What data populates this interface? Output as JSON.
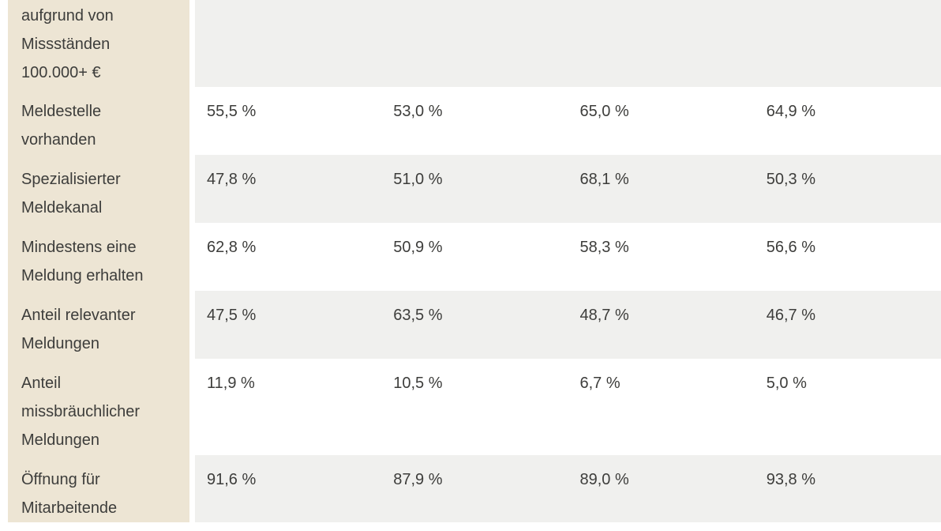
{
  "colors": {
    "label_column_bg": "#ede5d4",
    "stripe_row_bg": "#f0f0ee",
    "plain_row_bg": "#ffffff",
    "text": "#3d3d3b"
  },
  "table": {
    "rows": [
      {
        "label_lines": [
          "aufgrund von",
          "Missständen",
          "100.000+ €"
        ],
        "values": [
          "",
          "",
          "",
          ""
        ]
      },
      {
        "label_lines": [
          "Meldestelle",
          "vorhanden"
        ],
        "values": [
          "55,5 %",
          "53,0 %",
          "65,0 %",
          "64,9 %"
        ]
      },
      {
        "label_lines": [
          "Spezialisierter",
          "Meldekanal"
        ],
        "values": [
          "47,8 %",
          "51,0 %",
          "68,1 %",
          "50,3 %"
        ]
      },
      {
        "label_lines": [
          "Mindestens eine",
          "Meldung erhalten"
        ],
        "values": [
          "62,8 %",
          "50,9 %",
          "58,3 %",
          "56,6 %"
        ]
      },
      {
        "label_lines": [
          "Anteil relevanter",
          "Meldungen"
        ],
        "values": [
          "47,5 %",
          "63,5 %",
          "48,7 %",
          "46,7 %"
        ]
      },
      {
        "label_lines": [
          "Anteil",
          "missbräuchlicher",
          "Meldungen"
        ],
        "values": [
          "11,9 %",
          "10,5 %",
          "6,7 %",
          "5,0 %"
        ]
      },
      {
        "label_lines": [
          "Öffnung für",
          "Mitarbeitende"
        ],
        "values": [
          "91,6 %",
          "87,9 %",
          "89,0 %",
          "93,8 %"
        ]
      }
    ]
  },
  "chart_data": {
    "type": "table",
    "row_labels": [
      "aufgrund von Missständen 100.000+ €",
      "Meldestelle vorhanden",
      "Spezialisierter Meldekanal",
      "Mindestens eine Meldung erhalten",
      "Anteil relevanter Meldungen",
      "Anteil missbräuchlicher Meldungen",
      "Öffnung für Mitarbeitende"
    ],
    "values_percent": [
      [
        null,
        null,
        null,
        null
      ],
      [
        55.5,
        53.0,
        65.0,
        64.9
      ],
      [
        47.8,
        51.0,
        68.1,
        50.3
      ],
      [
        62.8,
        50.9,
        58.3,
        56.6
      ],
      [
        47.5,
        63.5,
        48.7,
        46.7
      ],
      [
        11.9,
        10.5,
        6.7,
        5.0
      ],
      [
        91.6,
        87.9,
        89.0,
        93.8
      ]
    ],
    "notes": "Column headers are cut off above the visible viewport; first row values are also cut off. Decimal commas and ' %' suffix as rendered."
  }
}
